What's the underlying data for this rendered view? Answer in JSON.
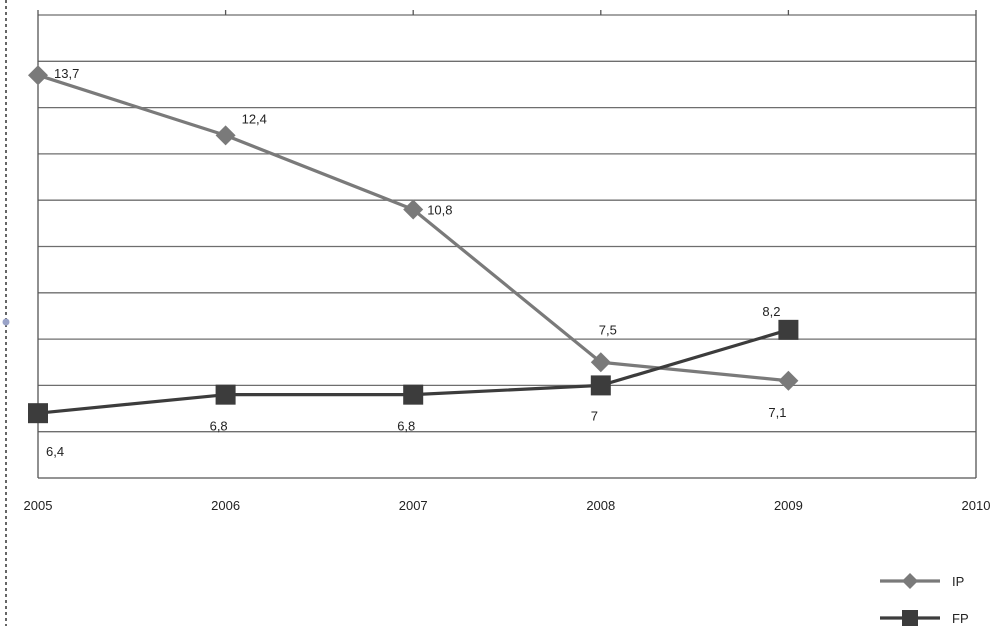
{
  "chart_data": {
    "type": "line",
    "title": "",
    "xlabel": "",
    "ylabel": "",
    "x": [
      "2005",
      "2006",
      "2007",
      "2008",
      "2009",
      "2010"
    ],
    "xlim": [
      2005,
      2010
    ],
    "ylim": [
      5.0,
      15.0
    ],
    "grid": true,
    "legend_position": "bottom-right",
    "series": [
      {
        "name": "IP",
        "marker": "diamond",
        "color": "#7a7a7a",
        "values": [
          13.7,
          12.4,
          10.8,
          7.5,
          7.1,
          null
        ],
        "labels": [
          "13,7",
          "12,4",
          "10,8",
          "7,5",
          "7,1",
          ""
        ]
      },
      {
        "name": "FP",
        "marker": "square",
        "color": "#3c3c3c",
        "values": [
          6.4,
          6.8,
          6.8,
          7.0,
          8.2,
          null
        ],
        "labels": [
          "6,4",
          "6,8",
          "6,8",
          "7",
          "8,2",
          ""
        ]
      }
    ]
  }
}
